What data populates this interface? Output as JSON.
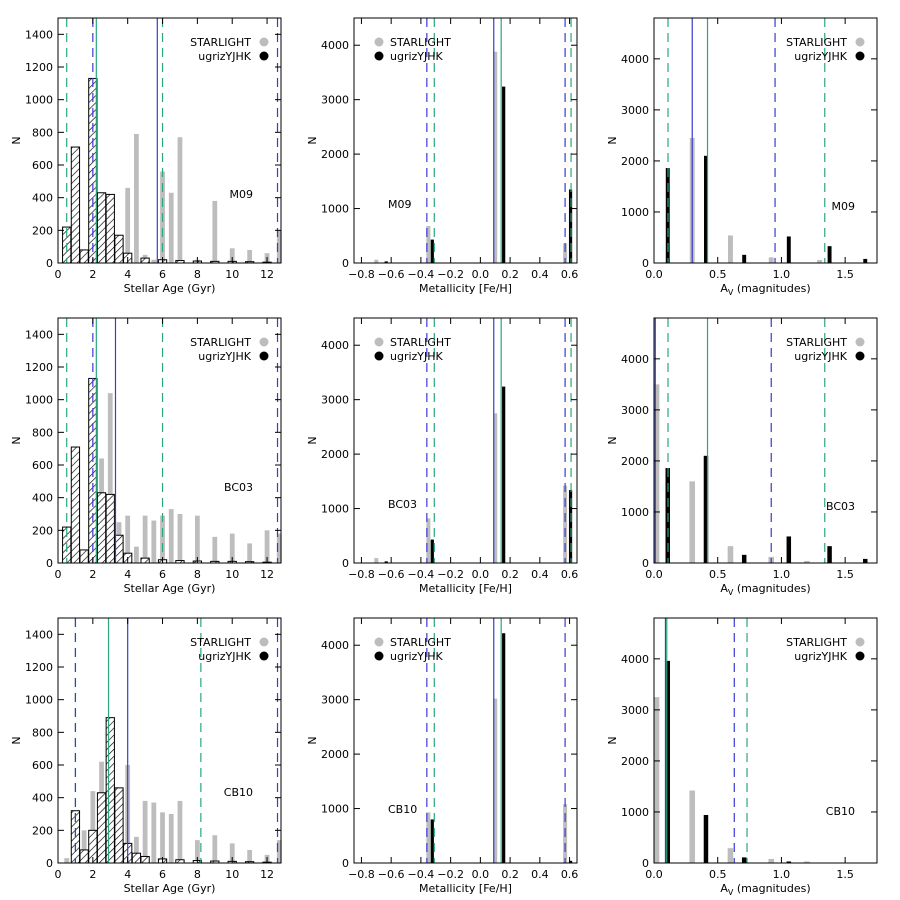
{
  "chart_data": [
    {
      "type": "histogram",
      "title": "",
      "model": "M09",
      "xlabel": "Stellar Age (Gyr)",
      "ylabel": "N",
      "xlim": [
        0,
        12.8
      ],
      "ylim": [
        0,
        1500
      ],
      "xticks": [
        0,
        2,
        4,
        6,
        8,
        10,
        12
      ],
      "yticks": [
        0,
        200,
        400,
        600,
        800,
        1000,
        1200,
        1400
      ],
      "legend": [
        "STARLIGHT",
        "ugrizYJHK"
      ],
      "starlight": {
        "x": [
          1.0,
          1.5,
          2.0,
          2.5,
          3.0,
          3.5,
          4.0,
          4.5,
          5.0,
          5.5,
          6.0,
          6.5,
          7.0,
          8.0,
          9.0,
          10.0,
          11.0,
          12.0,
          12.7
        ],
        "n": [
          10,
          20,
          30,
          350,
          130,
          110,
          460,
          790,
          50,
          20,
          560,
          430,
          770,
          20,
          380,
          90,
          80,
          60,
          200
        ]
      },
      "ugrizYJHK": {
        "x": [
          0.5,
          1.0,
          1.5,
          2.0,
          2.5,
          3.0,
          3.5,
          4.0,
          5.0,
          6.0,
          7.0,
          8.0,
          9.0,
          10.0,
          11.0,
          12.0
        ],
        "n": [
          220,
          710,
          80,
          1130,
          430,
          420,
          170,
          60,
          30,
          20,
          15,
          12,
          10,
          10,
          8,
          5
        ]
      },
      "lines": {
        "green_solid": 2.2,
        "green_dashed": [
          0.5,
          6.0
        ],
        "blue_solid": 5.7,
        "blue_dashed": [
          2.0,
          12.6
        ]
      }
    },
    {
      "type": "histogram",
      "model": "M09",
      "xlabel": "Metallicity [Fe/H]",
      "ylabel": "N",
      "xlim": [
        -0.85,
        0.65
      ],
      "ylim": [
        0,
        4500
      ],
      "xticks": [
        -0.8,
        -0.6,
        -0.4,
        -0.2,
        0.0,
        0.2,
        0.4,
        0.6
      ],
      "xticklabels": [
        "−0.8",
        "−0.6",
        "−0.4",
        "−0.2",
        "0.0",
        "0.2",
        "0.4",
        "0.6"
      ],
      "yticks": [
        0,
        1000,
        2000,
        3000,
        4000
      ],
      "legend": [
        "STARLIGHT",
        "ugrizYJHK"
      ],
      "starlight": {
        "x": [
          -0.7,
          -0.35,
          0.1,
          0.57
        ],
        "n": [
          60,
          680,
          3880,
          360
        ]
      },
      "ugrizYJHK": {
        "x": [
          -0.64,
          -0.33,
          0.15,
          0.6
        ],
        "n": [
          30,
          430,
          3240,
          1350
        ]
      },
      "lines": {
        "green_solid": 0.14,
        "green_dashed": [
          -0.31,
          0.61
        ],
        "blue_solid": 0.09,
        "blue_dashed": [
          -0.36,
          0.57
        ]
      }
    },
    {
      "type": "histogram",
      "model": "M09",
      "xlabel": "A_V (magnitudes)",
      "ylabel": "N",
      "xlim": [
        0,
        1.75
      ],
      "ylim": [
        0,
        4800
      ],
      "xticks": [
        0,
        0.5,
        1.0,
        1.5
      ],
      "xticklabels": [
        "0.0",
        "0.5",
        "1.0",
        "1.5"
      ],
      "yticks": [
        0,
        1000,
        2000,
        3000,
        4000
      ],
      "legend": [
        "STARLIGHT",
        "ugrizYJHK"
      ],
      "starlight": {
        "x": [
          0.3,
          0.6,
          0.92,
          1.3
        ],
        "n": [
          2450,
          540,
          110,
          60
        ]
      },
      "ugrizYJHK": {
        "x": [
          0.1,
          0.4,
          0.7,
          1.05,
          1.37,
          1.65
        ],
        "n": [
          1860,
          2100,
          160,
          520,
          330,
          80
        ]
      },
      "lines": {
        "green_solid": 0.42,
        "green_dashed": [
          0.11,
          1.34
        ],
        "blue_solid": 0.3,
        "blue_dashed": [
          0.95
        ]
      }
    },
    {
      "type": "histogram",
      "model": "BC03",
      "xlabel": "Stellar Age (Gyr)",
      "ylabel": "N",
      "xlim": [
        0,
        12.8
      ],
      "ylim": [
        0,
        1500
      ],
      "xticks": [
        0,
        2,
        4,
        6,
        8,
        10,
        12
      ],
      "yticks": [
        0,
        200,
        400,
        600,
        800,
        1000,
        1200,
        1400
      ],
      "legend": [
        "STARLIGHT",
        "ugrizYJHK"
      ],
      "starlight": {
        "x": [
          1.0,
          1.5,
          2.0,
          2.5,
          3.0,
          3.5,
          4.0,
          4.5,
          5.0,
          5.5,
          6.0,
          6.5,
          7.0,
          8.0,
          9.0,
          10.0,
          11.0,
          12.0,
          12.7
        ],
        "n": [
          20,
          30,
          40,
          640,
          1040,
          250,
          290,
          100,
          290,
          260,
          290,
          330,
          300,
          290,
          160,
          180,
          120,
          200,
          180
        ]
      },
      "ugrizYJHK": {
        "x": [
          0.5,
          1.0,
          1.5,
          2.0,
          2.5,
          3.0,
          3.5,
          4.0,
          5.0,
          6.0,
          7.0,
          8.0,
          9.0,
          10.0,
          11.0,
          12.0
        ],
        "n": [
          220,
          710,
          80,
          1130,
          430,
          420,
          170,
          60,
          30,
          20,
          15,
          12,
          10,
          10,
          8,
          5
        ]
      },
      "lines": {
        "green_solid": 2.2,
        "green_dashed": [
          0.5,
          6.0
        ],
        "blue_solid": 3.3,
        "blue_dashed": [
          2.0,
          12.6
        ]
      }
    },
    {
      "type": "histogram",
      "model": "BC03",
      "xlabel": "Metallicity [Fe/H]",
      "ylabel": "N",
      "xlim": [
        -0.85,
        0.65
      ],
      "ylim": [
        0,
        4500
      ],
      "xticks": [
        -0.8,
        -0.6,
        -0.4,
        -0.2,
        0.0,
        0.2,
        0.4,
        0.6
      ],
      "xticklabels": [
        "−0.8",
        "−0.6",
        "−0.4",
        "−0.2",
        "0.0",
        "0.2",
        "0.4",
        "0.6"
      ],
      "yticks": [
        0,
        1000,
        2000,
        3000,
        4000
      ],
      "legend": [
        "STARLIGHT",
        "ugrizYJHK"
      ],
      "starlight": {
        "x": [
          -0.7,
          -0.35,
          0.1,
          0.57
        ],
        "n": [
          90,
          820,
          2750,
          1420
        ]
      },
      "ugrizYJHK": {
        "x": [
          -0.64,
          -0.33,
          0.15,
          0.6
        ],
        "n": [
          30,
          430,
          3240,
          1340
        ]
      },
      "lines": {
        "green_solid": 0.14,
        "green_dashed": [
          -0.31,
          0.61
        ],
        "blue_solid": 0.09,
        "blue_dashed": [
          -0.36,
          0.57
        ]
      }
    },
    {
      "type": "histogram",
      "model": "BC03",
      "xlabel": "A_V (magnitudes)",
      "ylabel": "N",
      "xlim": [
        0,
        1.75
      ],
      "ylim": [
        0,
        4800
      ],
      "xticks": [
        0,
        0.5,
        1.0,
        1.5
      ],
      "xticklabels": [
        "0.0",
        "0.5",
        "1.0",
        "1.5"
      ],
      "yticks": [
        0,
        1000,
        2000,
        3000,
        4000
      ],
      "legend": [
        "STARLIGHT",
        "ugrizYJHK"
      ],
      "starlight": {
        "x": [
          0.02,
          0.3,
          0.6,
          0.92,
          1.2
        ],
        "n": [
          3500,
          1600,
          330,
          120,
          40
        ]
      },
      "ugrizYJHK": {
        "x": [
          0.1,
          0.4,
          0.7,
          1.05,
          1.37,
          1.65
        ],
        "n": [
          1860,
          2100,
          160,
          520,
          330,
          80
        ]
      },
      "lines": {
        "green_solid": 0.42,
        "green_dashed": [
          0.11,
          1.34
        ],
        "blue_solid": 0.01,
        "blue_dashed": [
          0.92
        ]
      }
    },
    {
      "type": "histogram",
      "model": "CB10",
      "xlabel": "Stellar Age (Gyr)",
      "ylabel": "N",
      "xlim": [
        0,
        12.8
      ],
      "ylim": [
        0,
        1500
      ],
      "xticks": [
        0,
        2,
        4,
        6,
        8,
        10,
        12
      ],
      "yticks": [
        0,
        200,
        400,
        600,
        800,
        1000,
        1200,
        1400
      ],
      "legend": [
        "STARLIGHT",
        "ugrizYJHK"
      ],
      "starlight": {
        "x": [
          0.5,
          1.0,
          1.5,
          2.0,
          2.5,
          3.0,
          3.5,
          4.0,
          4.5,
          5.0,
          5.5,
          6.0,
          6.5,
          7.0,
          8.0,
          9.0,
          10.0,
          11.0,
          12.0,
          12.7
        ],
        "n": [
          30,
          40,
          200,
          440,
          620,
          480,
          340,
          600,
          160,
          380,
          370,
          310,
          300,
          380,
          140,
          170,
          120,
          80,
          50,
          140
        ]
      },
      "ugrizYJHK": {
        "x": [
          1.0,
          1.5,
          2.0,
          2.5,
          3.0,
          3.5,
          4.0,
          4.5,
          5.0,
          6.0,
          7.0,
          8.0,
          9.0,
          10.0,
          11.0,
          12.0
        ],
        "n": [
          320,
          80,
          200,
          430,
          890,
          460,
          120,
          60,
          40,
          25,
          20,
          15,
          12,
          10,
          8,
          5
        ]
      },
      "lines": {
        "green_solid": 2.9,
        "green_dashed": [
          1.0,
          8.2
        ],
        "blue_solid": 4.0,
        "blue_dashed": [
          1.0,
          12.6
        ]
      }
    },
    {
      "type": "histogram",
      "model": "CB10",
      "xlabel": "Metallicity [Fe/H]",
      "ylabel": "N",
      "xlim": [
        -0.85,
        0.65
      ],
      "ylim": [
        0,
        4500
      ],
      "xticks": [
        -0.8,
        -0.6,
        -0.4,
        -0.2,
        0.0,
        0.2,
        0.4,
        0.6
      ],
      "xticklabels": [
        "−0.8",
        "−0.6",
        "−0.4",
        "−0.2",
        "0.0",
        "0.2",
        "0.4",
        "0.6"
      ],
      "yticks": [
        0,
        1000,
        2000,
        3000,
        4000
      ],
      "legend": [
        "STARLIGHT",
        "ugrizYJHK"
      ],
      "starlight": {
        "x": [
          -0.35,
          0.1,
          0.57
        ],
        "n": [
          930,
          3020,
          1080
        ]
      },
      "ugrizYJHK": {
        "x": [
          -0.33,
          0.15,
          0.6
        ],
        "n": [
          800,
          4220,
          40
        ]
      },
      "lines": {
        "green_solid": 0.14,
        "green_dashed": [
          -0.31
        ],
        "blue_solid": 0.09,
        "blue_dashed": [
          -0.36,
          0.57
        ]
      }
    },
    {
      "type": "histogram",
      "model": "CB10",
      "xlabel": "A_V (magnitudes)",
      "ylabel": "N",
      "xlim": [
        0,
        1.75
      ],
      "ylim": [
        0,
        4800
      ],
      "xticks": [
        0,
        0.5,
        1.0,
        1.5
      ],
      "xticklabels": [
        "0.0",
        "0.5",
        "1.0",
        "1.5"
      ],
      "yticks": [
        0,
        1000,
        2000,
        3000,
        4000
      ],
      "legend": [
        "STARLIGHT",
        "ugrizYJHK"
      ],
      "starlight": {
        "x": [
          0.02,
          0.3,
          0.6,
          0.92,
          1.2
        ],
        "n": [
          3250,
          1420,
          290,
          80,
          30
        ]
      },
      "ugrizYJHK": {
        "x": [
          0.1,
          0.4,
          0.7,
          1.05
        ],
        "n": [
          3960,
          940,
          110,
          30
        ]
      },
      "lines": {
        "green_solid": 0.1,
        "green_dashed": [
          0.73
        ],
        "blue_solid": 0.09,
        "blue_dashed": [
          0.63
        ]
      }
    }
  ],
  "colors": {
    "starlight": "#bdbdbd",
    "ugrizYJHK": "#000000",
    "green": "#2aa87a",
    "blue": "#3b3bd0"
  }
}
